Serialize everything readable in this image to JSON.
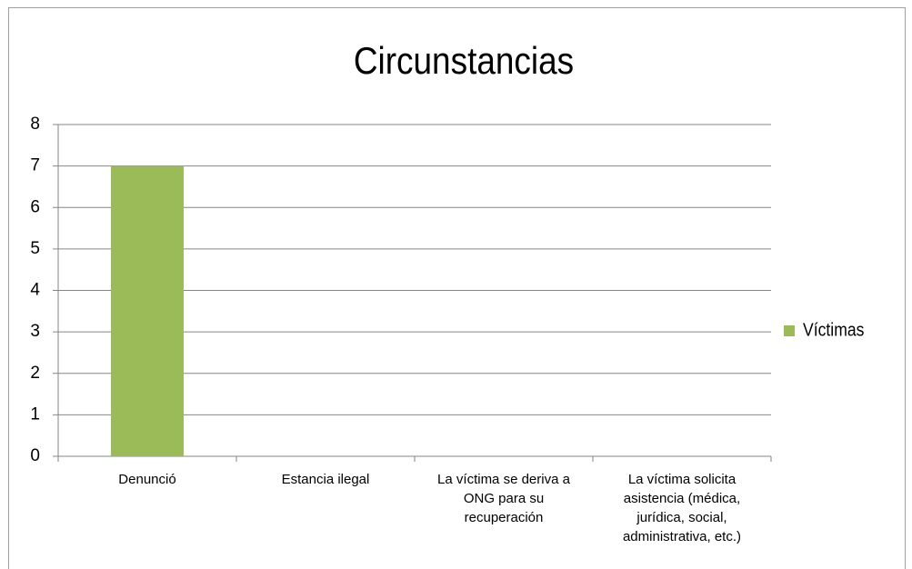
{
  "chart_data": {
    "type": "bar",
    "title": "Circunstancias",
    "categories": [
      "Denunció",
      "Estancia ilegal",
      "La víctima se deriva a ONG para su recuperación",
      "La víctima solicita asistencia (médica, jurídica, social, administrativa, etc.)"
    ],
    "series": [
      {
        "name": "Víctimas",
        "color": "#9bbb59",
        "values": [
          7,
          0,
          0,
          0
        ]
      }
    ],
    "ylim": [
      0,
      8
    ],
    "yticks": [
      0,
      1,
      2,
      3,
      4,
      5,
      6,
      7,
      8
    ],
    "grid": true,
    "legend": "right"
  }
}
